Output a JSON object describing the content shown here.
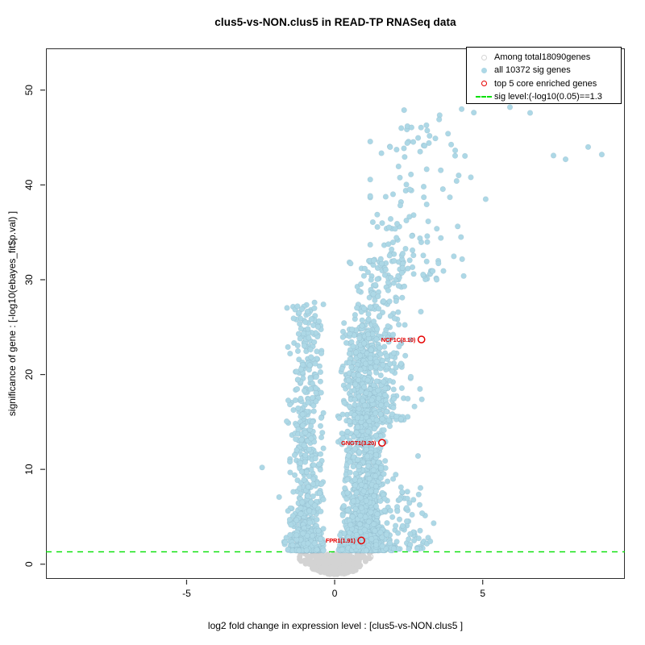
{
  "chart_data": {
    "type": "scatter",
    "title": "clus5-vs-NON.clus5 in READ-TP RNASeq data",
    "xlabel": "log2 fold change in expression level : [clus5-vs-NON.clus5 ]",
    "ylabel": "significance of gene : [-log10(ebayes_fit$p.val) ]",
    "xlim": [
      -9.75,
      9.8
    ],
    "ylim": [
      -1.55,
      54.4
    ],
    "xticks": [
      -5,
      0,
      5
    ],
    "yticks": [
      0,
      10,
      20,
      30,
      40,
      50
    ],
    "grid": false,
    "legend_position": "top-right",
    "colors": {
      "sig_points": "#ADD8E6",
      "nonsig_points": "#D3D3D3",
      "enriched": "#E60000",
      "sig_line": "#00E000",
      "axis": "#2e2e2e"
    },
    "sig_line": {
      "y": 1.3,
      "style": "dashed",
      "label": "sig level:(-log10(0.05)==1.3"
    },
    "legend": {
      "items": [
        {
          "marker": "open-circle",
          "color": "#d4d4d4",
          "label": "Among total18090genes"
        },
        {
          "marker": "filled-circle",
          "color": "#ADD8E6",
          "label": "all 10372 sig genes"
        },
        {
          "marker": "open-circle",
          "color": "#E60000",
          "label": "top 5 core enriched genes"
        },
        {
          "marker": "dashed-line",
          "color": "#00E000",
          "label": "sig level:(-log10(0.05)==1.3"
        }
      ]
    },
    "labeled_genes": [
      {
        "label": "NCF1C(8.10)",
        "x": 2.93,
        "y": 23.7
      },
      {
        "label": "GNGT1(3.20)",
        "x": 1.6,
        "y": 12.8
      },
      {
        "label": "FPR1(1.91)",
        "x": 0.9,
        "y": 2.5
      }
    ],
    "outlier_points": [
      [
        -2.45,
        10.2
      ],
      [
        -0.68,
        27.6
      ],
      [
        3.1,
        46.3
      ],
      [
        3.53,
        46.9
      ],
      [
        3.83,
        45.4
      ],
      [
        3.4,
        44.9
      ],
      [
        4.29,
        48.0
      ],
      [
        5.92,
        48.2
      ],
      [
        6.6,
        47.6
      ],
      [
        7.39,
        43.1
      ],
      [
        7.8,
        42.7
      ],
      [
        8.56,
        44.0
      ],
      [
        9.02,
        43.2
      ],
      [
        5.1,
        38.5
      ],
      [
        4.6,
        40.8
      ]
    ],
    "gray_open_rings": [
      [
        1.2,
        0.77
      ],
      [
        0.6,
        0.68
      ],
      [
        1.28,
        1.45
      ]
    ],
    "point_cloud": {
      "seed": 21,
      "point_radius": 3.3,
      "gap": {
        "base": 0.09,
        "slope": 0.027,
        "max_y": 12
      },
      "clusters": [
        {
          "name": "left-arm-dense",
          "n": 750,
          "x_mean": -0.95,
          "x_sd": 0.27,
          "x_min": -2.6,
          "x_max": -0.38,
          "y_base": 1.45,
          "y_span": 26,
          "y_pow": 3.2
        },
        {
          "name": "left-arm-upper",
          "n": 45,
          "x_mean": -0.88,
          "x_sd": 0.25,
          "x_min": -1.7,
          "x_max": -0.45,
          "y_base": 13,
          "y_span": 14,
          "y_pow": 1.2
        },
        {
          "name": "right-arm-dense",
          "n": 1600,
          "x_mean": 1.0,
          "x_sd": 0.36,
          "x_min": 0.1,
          "x_max": 2.6,
          "y_base": 1.45,
          "y_span": 24,
          "y_pow": 2.6
        },
        {
          "name": "right-arm-mid",
          "n": 320,
          "x_mean": 1.5,
          "x_sd": 0.55,
          "x_min": 0.5,
          "x_max": 3.7,
          "y_base": 15,
          "y_span": 17,
          "y_pow": 1.4
        },
        {
          "name": "right-arm-high",
          "n": 135,
          "x_mean": 2.6,
          "x_sd": 0.85,
          "x_min": 1.2,
          "x_max": 4.7,
          "y_base": 30,
          "y_span": 18,
          "y_pow": 1.7
        },
        {
          "name": "right-low-scatter",
          "n": 90,
          "x_mean": 2.2,
          "x_sd": 0.55,
          "x_min": 1.4,
          "x_max": 3.8,
          "y_base": 1.6,
          "y_span": 10,
          "y_pow": 2.2
        }
      ],
      "gray_blob": {
        "n": 430,
        "x_sd": 0.5,
        "x_max": 1.18,
        "y_top": 1.22,
        "y_depth": 2.3
      }
    }
  }
}
